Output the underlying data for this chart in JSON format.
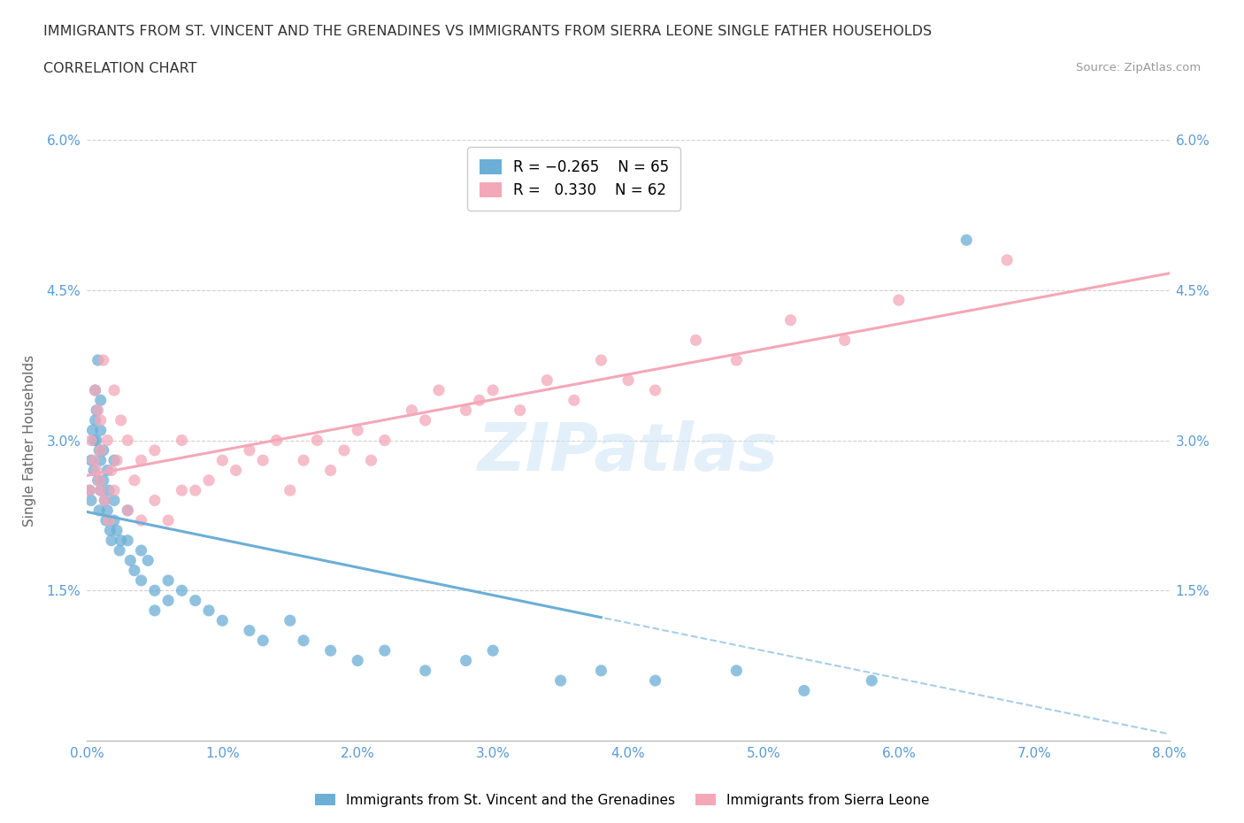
{
  "title_line1": "IMMIGRANTS FROM ST. VINCENT AND THE GRENADINES VS IMMIGRANTS FROM SIERRA LEONE SINGLE FATHER HOUSEHOLDS",
  "title_line2": "CORRELATION CHART",
  "source": "Source: ZipAtlas.com",
  "ylabel": "Single Father Households",
  "xmin": 0.0,
  "xmax": 0.08,
  "ymin": 0.0,
  "ymax": 0.06,
  "xticks": [
    0.0,
    0.01,
    0.02,
    0.03,
    0.04,
    0.05,
    0.06,
    0.07,
    0.08
  ],
  "yticks": [
    0.0,
    0.015,
    0.03,
    0.045,
    0.06
  ],
  "ytick_labels": [
    "",
    "1.5%",
    "3.0%",
    "4.5%",
    "6.0%"
  ],
  "xtick_labels": [
    "0.0%",
    "1.0%",
    "2.0%",
    "3.0%",
    "4.0%",
    "5.0%",
    "6.0%",
    "7.0%",
    "8.0%"
  ],
  "series1_color": "#6baed6",
  "series2_color": "#f4a7b9",
  "series1_label": "Immigrants from St. Vincent and the Grenadines",
  "series2_label": "Immigrants from Sierra Leone",
  "series1_R": -0.265,
  "series1_N": 65,
  "series2_R": 0.33,
  "series2_N": 62,
  "watermark": "ZIPatlas",
  "background_color": "#ffffff",
  "grid_color": "#d0d0d0",
  "axis_label_color": "#5b9bd5",
  "blue_x": [
    0.0002,
    0.0003,
    0.0003,
    0.0004,
    0.0005,
    0.0005,
    0.0006,
    0.0006,
    0.0007,
    0.0007,
    0.0008,
    0.0008,
    0.0009,
    0.0009,
    0.001,
    0.001,
    0.001,
    0.001,
    0.0012,
    0.0012,
    0.0013,
    0.0014,
    0.0015,
    0.0015,
    0.0016,
    0.0017,
    0.0018,
    0.002,
    0.002,
    0.002,
    0.0022,
    0.0024,
    0.0025,
    0.003,
    0.003,
    0.0032,
    0.0035,
    0.004,
    0.004,
    0.0045,
    0.005,
    0.005,
    0.006,
    0.006,
    0.007,
    0.008,
    0.009,
    0.01,
    0.012,
    0.013,
    0.015,
    0.016,
    0.018,
    0.02,
    0.022,
    0.025,
    0.028,
    0.03,
    0.035,
    0.038,
    0.042,
    0.048,
    0.053,
    0.058,
    0.065
  ],
  "blue_y": [
    0.025,
    0.028,
    0.024,
    0.031,
    0.03,
    0.027,
    0.035,
    0.032,
    0.033,
    0.03,
    0.038,
    0.026,
    0.029,
    0.023,
    0.034,
    0.031,
    0.028,
    0.025,
    0.029,
    0.026,
    0.024,
    0.022,
    0.027,
    0.023,
    0.025,
    0.021,
    0.02,
    0.028,
    0.024,
    0.022,
    0.021,
    0.019,
    0.02,
    0.023,
    0.02,
    0.018,
    0.017,
    0.019,
    0.016,
    0.018,
    0.015,
    0.013,
    0.016,
    0.014,
    0.015,
    0.014,
    0.013,
    0.012,
    0.011,
    0.01,
    0.012,
    0.01,
    0.009,
    0.008,
    0.009,
    0.007,
    0.008,
    0.009,
    0.006,
    0.007,
    0.006,
    0.007,
    0.005,
    0.006,
    0.05
  ],
  "pink_x": [
    0.0002,
    0.0003,
    0.0005,
    0.0006,
    0.0007,
    0.0008,
    0.0009,
    0.001,
    0.001,
    0.001,
    0.0012,
    0.0013,
    0.0015,
    0.0016,
    0.0018,
    0.002,
    0.002,
    0.0022,
    0.0025,
    0.003,
    0.003,
    0.0035,
    0.004,
    0.004,
    0.005,
    0.005,
    0.006,
    0.007,
    0.007,
    0.008,
    0.009,
    0.01,
    0.011,
    0.012,
    0.013,
    0.014,
    0.015,
    0.016,
    0.017,
    0.018,
    0.019,
    0.02,
    0.021,
    0.022,
    0.024,
    0.025,
    0.026,
    0.028,
    0.029,
    0.03,
    0.032,
    0.034,
    0.036,
    0.038,
    0.04,
    0.042,
    0.045,
    0.048,
    0.052,
    0.056,
    0.06,
    0.068
  ],
  "pink_y": [
    0.025,
    0.03,
    0.028,
    0.035,
    0.027,
    0.033,
    0.026,
    0.032,
    0.029,
    0.025,
    0.038,
    0.024,
    0.03,
    0.022,
    0.027,
    0.035,
    0.025,
    0.028,
    0.032,
    0.03,
    0.023,
    0.026,
    0.028,
    0.022,
    0.029,
    0.024,
    0.022,
    0.025,
    0.03,
    0.025,
    0.026,
    0.028,
    0.027,
    0.029,
    0.028,
    0.03,
    0.025,
    0.028,
    0.03,
    0.027,
    0.029,
    0.031,
    0.028,
    0.03,
    0.033,
    0.032,
    0.035,
    0.033,
    0.034,
    0.035,
    0.033,
    0.036,
    0.034,
    0.038,
    0.036,
    0.035,
    0.04,
    0.038,
    0.042,
    0.04,
    0.044,
    0.048
  ]
}
